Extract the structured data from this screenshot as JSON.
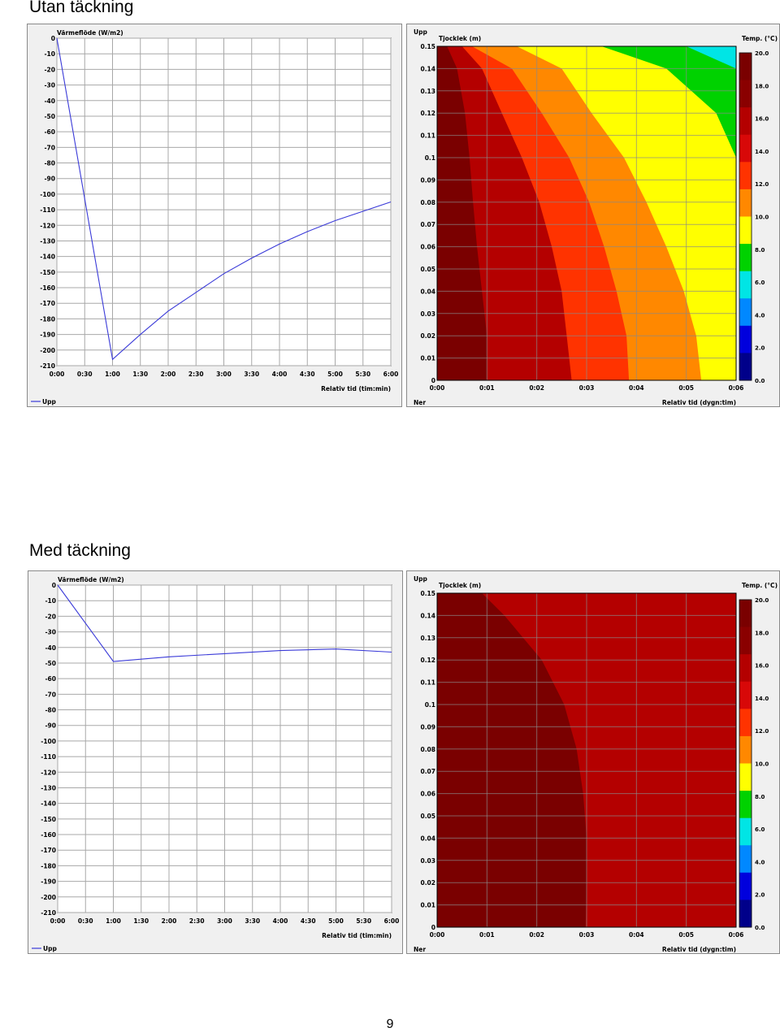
{
  "sections": [
    {
      "title": "Utan täckning",
      "chart_data": [
        {
          "type": "line",
          "ylabel": "Värmeflöde (W/m2)",
          "xlabel": "Relativ tid (tim:min)",
          "x_ticks": [
            "0:00",
            "0:30",
            "1:00",
            "1:30",
            "2:00",
            "2:30",
            "3:00",
            "3:30",
            "4:00",
            "4:30",
            "5:00",
            "5:30",
            "6:00"
          ],
          "y_ticks": [
            "0",
            "-10",
            "-20",
            "-30",
            "-40",
            "-50",
            "-60",
            "-70",
            "-80",
            "-90",
            "-100",
            "-110",
            "-120",
            "-130",
            "-140",
            "-150",
            "-160",
            "-170",
            "-180",
            "-190",
            "-200",
            "-210"
          ],
          "xlim": [
            0,
            6
          ],
          "ylim": [
            -210,
            0
          ],
          "grid": true,
          "series": [
            {
              "name": "Upp",
              "color": "#3a3ad8",
              "x": [
                0,
                1.0,
                1.5,
                2.0,
                2.5,
                3.0,
                3.5,
                4.0,
                4.5,
                5.0,
                5.5,
                6.0
              ],
              "y": [
                0,
                -206,
                -190,
                -175,
                -163,
                -151,
                -141,
                -132,
                -124,
                -117,
                -111,
                -105
              ]
            }
          ]
        },
        {
          "type": "heatmap",
          "ylabel": "Tjocklek (m)",
          "xlabel": "Relativ tid (dygn:tim)",
          "top_label": "Upp",
          "bottom_label": "Ner",
          "x_ticks": [
            "0:00",
            "0:01",
            "0:02",
            "0:03",
            "0:04",
            "0:05",
            "0:06"
          ],
          "y_ticks": [
            "0",
            "0.01",
            "0.02",
            "0.03",
            "0.04",
            "0.05",
            "0.06",
            "0.07",
            "0.08",
            "0.09",
            "0.1",
            "0.11",
            "0.12",
            "0.13",
            "0.14",
            "0.15"
          ],
          "xlim": [
            0,
            6
          ],
          "ylim": [
            0,
            0.15
          ],
          "colorbar_title": "Temp. (°C)",
          "colorbar_ticks": [
            "20.0",
            "18.0",
            "16.0",
            "14.0",
            "12.0",
            "10.0",
            "8.0",
            "6.0",
            "4.0",
            "2.0",
            "0.0"
          ],
          "colorbar_colors": [
            "#7a0000",
            "#8a0000",
            "#b40000",
            "#d80808",
            "#ff3300",
            "#ff8800",
            "#ffff00",
            "#00d200",
            "#00e5e5",
            "#0088ff",
            "#0000dd",
            "#00008a"
          ],
          "regions": [
            {
              "color": "#7a0000",
              "boundary_x": [
                1.0,
                1.0,
                0.9,
                0.8,
                0.72,
                0.65,
                0.56,
                0.4,
                0.2
              ]
            },
            {
              "color": "#b40000",
              "boundary_x": [
                2.7,
                2.6,
                2.5,
                2.3,
                2.05,
                1.7,
                1.3,
                0.9,
                0.5
              ]
            },
            {
              "color": "#ff3300",
              "boundary_x": [
                3.85,
                3.8,
                3.6,
                3.35,
                3.05,
                2.65,
                2.1,
                1.5,
                0.7
              ]
            },
            {
              "color": "#ff8800",
              "boundary_x": [
                5.3,
                5.2,
                4.95,
                4.6,
                4.2,
                3.75,
                3.1,
                2.5,
                1.6
              ]
            },
            {
              "color": "#ffff00",
              "boundary_x": [
                6.0,
                6.0,
                6.0,
                6.0,
                6.0,
                6.0,
                5.6,
                4.6,
                3.3
              ]
            },
            {
              "color": "#00d200",
              "boundary_x": [
                6.0,
                6.0,
                6.0,
                6.0,
                6.0,
                6.0,
                6.0,
                6.0,
                5.0
              ]
            },
            {
              "color": "#00e5e5",
              "boundary_x": [
                6.0,
                6.0,
                6.0,
                6.0,
                6.0,
                6.0,
                6.0,
                6.0,
                6.0
              ]
            }
          ],
          "region_y": [
            0,
            0.02,
            0.04,
            0.06,
            0.08,
            0.1,
            0.12,
            0.14,
            0.15
          ]
        }
      ]
    },
    {
      "title": "Med täckning",
      "chart_data": [
        {
          "type": "line",
          "ylabel": "Värmeflöde (W/m2)",
          "xlabel": "Relativ tid (tim:min)",
          "x_ticks": [
            "0:00",
            "0:30",
            "1:00",
            "1:30",
            "2:00",
            "2:30",
            "3:00",
            "3:30",
            "4:00",
            "4:30",
            "5:00",
            "5:30",
            "6:00"
          ],
          "y_ticks": [
            "0",
            "-10",
            "-20",
            "-30",
            "-40",
            "-50",
            "-60",
            "-70",
            "-80",
            "-90",
            "-100",
            "-110",
            "-120",
            "-130",
            "-140",
            "-150",
            "-160",
            "-170",
            "-180",
            "-190",
            "-200",
            "-210"
          ],
          "xlim": [
            0,
            6
          ],
          "ylim": [
            -210,
            0
          ],
          "grid": true,
          "series": [
            {
              "name": "Upp",
              "color": "#3a3ad8",
              "x": [
                0,
                1.0,
                2.0,
                3.0,
                4.0,
                5.0,
                6.0
              ],
              "y": [
                0,
                -49,
                -46,
                -44,
                -42,
                -41,
                -43
              ]
            }
          ]
        },
        {
          "type": "heatmap",
          "ylabel": "Tjocklek (m)",
          "xlabel": "Relativ tid (dygn:tim)",
          "top_label": "Upp",
          "bottom_label": "Ner",
          "x_ticks": [
            "0:00",
            "0:01",
            "0:02",
            "0:03",
            "0:04",
            "0:05",
            "0:06"
          ],
          "y_ticks": [
            "0",
            "0.01",
            "0.02",
            "0.03",
            "0.04",
            "0.05",
            "0.06",
            "0.07",
            "0.08",
            "0.09",
            "0.1",
            "0.11",
            "0.12",
            "0.13",
            "0.14",
            "0.15"
          ],
          "xlim": [
            0,
            6
          ],
          "ylim": [
            0,
            0.15
          ],
          "colorbar_title": "Temp. (°C)",
          "colorbar_ticks": [
            "20.0",
            "18.0",
            "16.0",
            "14.0",
            "12.0",
            "10.0",
            "8.0",
            "6.0",
            "4.0",
            "2.0",
            "0.0"
          ],
          "colorbar_colors": [
            "#7a0000",
            "#8a0000",
            "#b40000",
            "#d80808",
            "#ff3300",
            "#ff8800",
            "#ffff00",
            "#00d200",
            "#00e5e5",
            "#0088ff",
            "#0000dd",
            "#00008a"
          ],
          "background_color": "#b40000",
          "regions": [
            {
              "color": "#7a0000",
              "boundary_x": [
                2.98,
                3.0,
                3.0,
                2.93,
                2.8,
                2.55,
                2.1,
                1.35,
                0.9
              ]
            }
          ],
          "region_y": [
            0,
            0.02,
            0.04,
            0.06,
            0.08,
            0.1,
            0.12,
            0.14,
            0.15
          ]
        }
      ]
    }
  ],
  "page_number": "9"
}
